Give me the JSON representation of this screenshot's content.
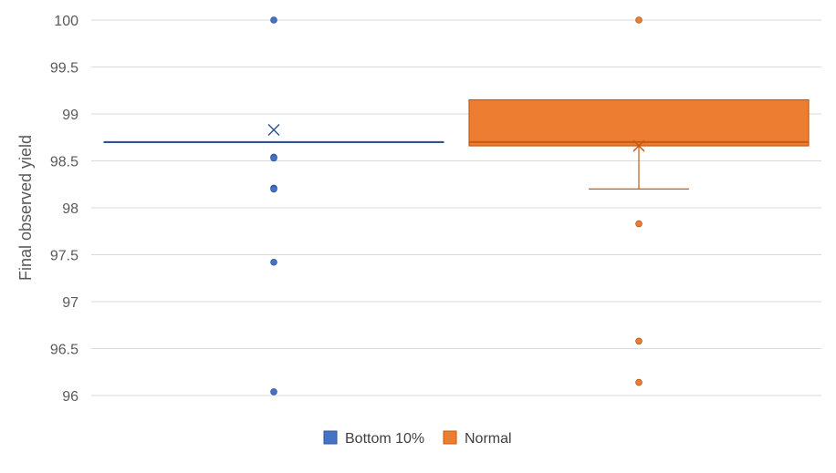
{
  "chart_data": {
    "type": "box",
    "ylabel": "Final observed yield",
    "xlabel": "",
    "ylim": [
      96,
      100
    ],
    "yticks": [
      96,
      96.5,
      97,
      97.5,
      98,
      98.5,
      99,
      99.5,
      100
    ],
    "ytick_labels": [
      "96",
      "96.5",
      "97",
      "97.5",
      "98",
      "98.5",
      "99",
      "99.5",
      "100"
    ],
    "grid": true,
    "legend_position": "bottom",
    "series": [
      {
        "name": "Bottom 10%",
        "color": "#4472c4",
        "box_q1": 98.7,
        "box_median": 98.7,
        "box_q3": 98.7,
        "whisker_low": 98.7,
        "whisker_high": 98.7,
        "mean": 98.83,
        "outliers": [
          100,
          98.54,
          98.53,
          98.21,
          98.2,
          97.42,
          96.04
        ]
      },
      {
        "name": "Normal",
        "color": "#ed7d31",
        "box_q1": 98.66,
        "box_median": 98.7,
        "box_q3": 99.15,
        "whisker_low": 98.2,
        "whisker_high": 99.15,
        "mean": 98.66,
        "outliers": [
          100,
          97.83,
          96.58,
          96.14
        ]
      }
    ]
  }
}
